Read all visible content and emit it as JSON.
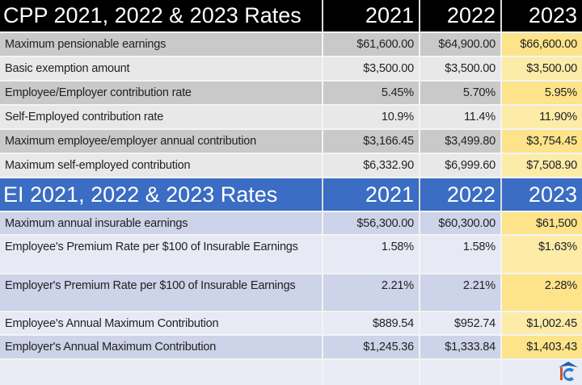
{
  "cpp": {
    "title": "CPP 2021, 2022 & 2023 Rates",
    "years": [
      "2021",
      "2022",
      "2023"
    ],
    "rows": [
      {
        "label": "Maximum pensionable earnings",
        "v": [
          "$61,600.00",
          "$64,900.00",
          "$66,600.00"
        ]
      },
      {
        "label": "Basic exemption amount",
        "v": [
          "$3,500.00",
          "$3,500.00",
          "$3,500.00"
        ]
      },
      {
        "label": "Employee/Employer contribution rate",
        "v": [
          "5.45%",
          "5.70%",
          "5.95%"
        ]
      },
      {
        "label": "Self-Employed contribution rate",
        "v": [
          "10.9%",
          "11.4%",
          "11.90%"
        ]
      },
      {
        "label": "Maximum employee/employer annual contribution",
        "v": [
          "$3,166.45",
          "$3,499.80",
          "$3,754.45"
        ]
      },
      {
        "label": "Maximum self-employed contribution",
        "v": [
          "$6,332.90",
          "$6,999.60",
          "$7,508.90"
        ]
      }
    ]
  },
  "ei": {
    "title": "EI 2021, 2022 & 2023 Rates",
    "years": [
      "2021",
      "2022",
      "2023"
    ],
    "rows": [
      {
        "label": "Maximum annual insurable earnings",
        "v": [
          "$56,300.00",
          "$60,300.00",
          "$61,500"
        ]
      },
      {
        "label": "Employee's Premium Rate per $100 of Insurable Earnings",
        "v": [
          "1.58%",
          "1.58%",
          "$1.63%"
        ]
      },
      {
        "label": "Employer's Premium Rate per $100 of Insurable Earnings",
        "v": [
          "2.21%",
          "2.21%",
          "2.28%"
        ]
      },
      {
        "label": "Employee's Annual Maximum Contribution",
        "v": [
          "$889.54",
          "$952.74",
          "$1,002.45"
        ]
      },
      {
        "label": "Employer's Annual Maximum Contribution",
        "v": [
          "$1,245.36",
          "$1,333.84",
          "$1,403.43"
        ]
      }
    ]
  },
  "colors": {
    "cpp_header": "#000000",
    "ei_header": "#3a6dc3",
    "highlight": "#fde38a"
  }
}
